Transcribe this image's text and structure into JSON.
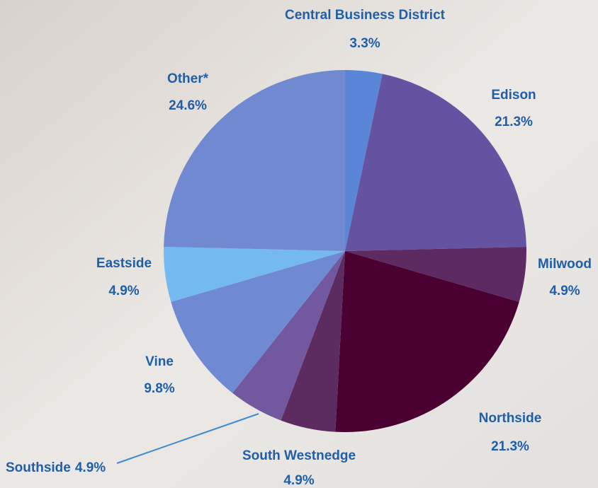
{
  "chart_data": {
    "type": "pie",
    "categories": [
      "Central Business District",
      "Edison",
      "Milwood",
      "Northside",
      "South Westnedge",
      "Southside",
      "Vine",
      "Eastside",
      "Other*"
    ],
    "values": [
      3.3,
      21.3,
      4.9,
      21.3,
      4.9,
      4.9,
      9.8,
      4.9,
      24.6
    ],
    "value_labels": [
      "3.3%",
      "21.3%",
      "4.9%",
      "21.3%",
      "4.9%",
      "4.9%",
      "9.8%",
      "4.9%",
      "24.6%"
    ],
    "colors": [
      "#5b86d8",
      "#6553a2",
      "#5e2a62",
      "#4a0030",
      "#5c2b60",
      "#72599f",
      "#6f8ad2",
      "#74b9f0",
      "#7189d1"
    ]
  }
}
